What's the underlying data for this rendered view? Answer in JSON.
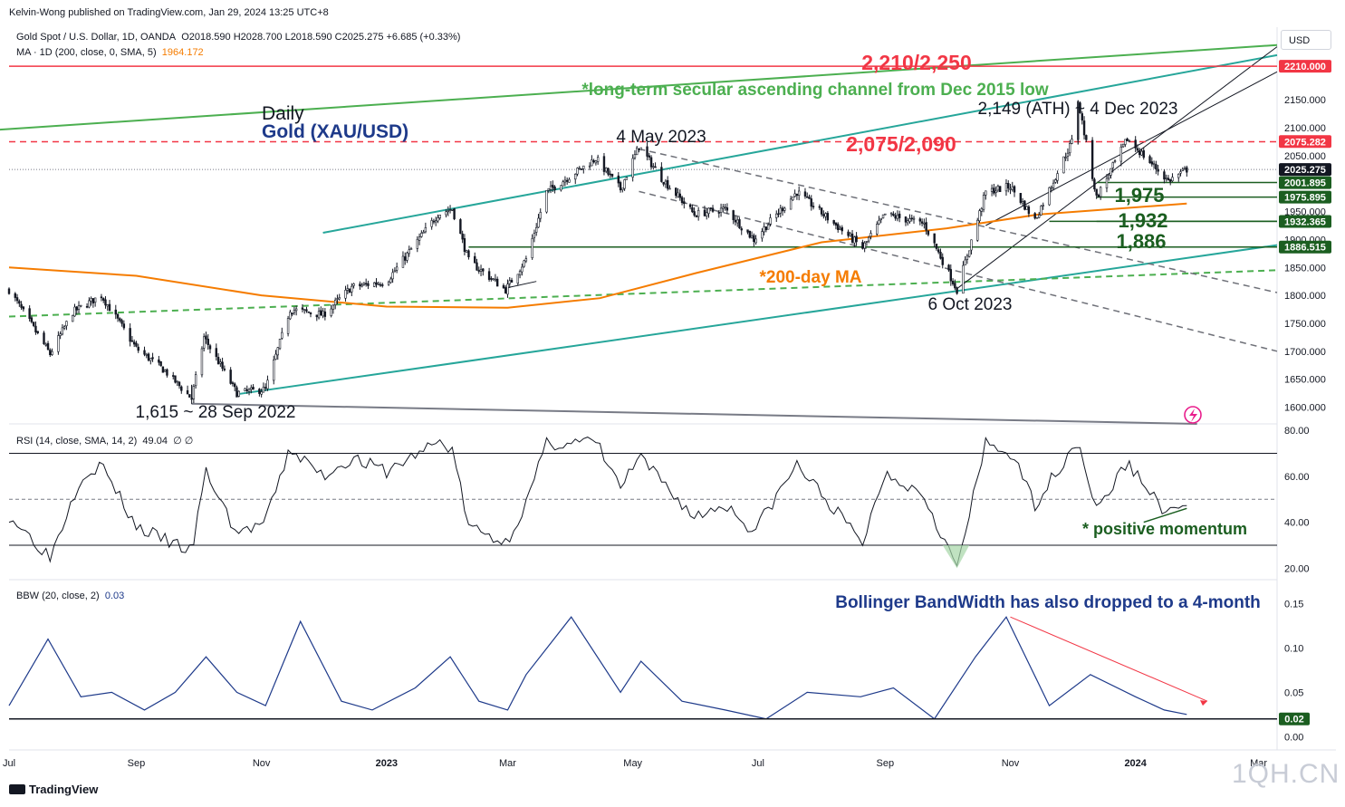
{
  "header": {
    "publisher": "Kelvin-Wong published on TradingView.com, Jan 29, 2024 13:25 UTC+8",
    "symbol": "Gold Spot / U.S. Dollar, 1D, OANDA",
    "ohlc": "O2018.590  H2028.700  L2018.590  C2025.275  +6.685 (+0.33%)",
    "ma_label": "MA · 1D (200, close, 0, SMA, 5)",
    "ma_value": "1964.172",
    "currency_button": "USD"
  },
  "colors": {
    "up": "#131722",
    "down": "#131722",
    "ma": "#f57c00",
    "channel": "#26a69a",
    "secular": "#4caf50",
    "resistance": "#f23645",
    "support": "#1b5e20",
    "rsi": "#131722",
    "bbw": "#1e3a8a",
    "note_blue": "#1e3a8a"
  },
  "chart_data": [
    {
      "type": "candlestick",
      "title": "Daily Gold (XAU/USD)",
      "timeframe": "Daily",
      "instrument": "Gold (XAU/USD)",
      "ylim": [
        1570,
        2280
      ],
      "xlim": [
        "2022-07-01",
        "2024-03-10"
      ],
      "x_tick_labels": [
        "Jul",
        "Sep",
        "Nov",
        "2023",
        "Mar",
        "May",
        "Jul",
        "Sep",
        "Nov",
        "2024",
        "Mar"
      ],
      "y_ticks": [
        1600,
        1650,
        1700,
        1750,
        1800,
        1850,
        1900,
        1950,
        2000,
        2050,
        2100,
        2150
      ],
      "y_tick_labels": [
        "1600.000",
        "1650.000",
        "1700.000",
        "1750.000",
        "1800.000",
        "1850.000",
        "1900.000",
        "1950.000",
        "2000.000",
        "2050.000",
        "2100.000",
        "2150.000"
      ],
      "price_path": [
        [
          "2022-07-01",
          1810
        ],
        [
          "2022-07-21",
          1695
        ],
        [
          "2022-08-01",
          1770
        ],
        [
          "2022-08-15",
          1800
        ],
        [
          "2022-09-01",
          1705
        ],
        [
          "2022-09-15",
          1665
        ],
        [
          "2022-09-28",
          1615
        ],
        [
          "2022-10-04",
          1725
        ],
        [
          "2022-10-20",
          1625
        ],
        [
          "2022-11-03",
          1632
        ],
        [
          "2022-11-15",
          1775
        ],
        [
          "2022-12-01",
          1765
        ],
        [
          "2022-12-15",
          1815
        ],
        [
          "2023-01-01",
          1825
        ],
        [
          "2023-01-26",
          1945
        ],
        [
          "2023-02-02",
          1955
        ],
        [
          "2023-02-10",
          1862
        ],
        [
          "2023-02-28",
          1810
        ],
        [
          "2023-03-10",
          1865
        ],
        [
          "2023-03-20",
          1985
        ],
        [
          "2023-04-13",
          2045
        ],
        [
          "2023-04-25",
          1990
        ],
        [
          "2023-05-04",
          2067
        ],
        [
          "2023-05-15",
          2010
        ],
        [
          "2023-05-31",
          1945
        ],
        [
          "2023-06-15",
          1955
        ],
        [
          "2023-06-29",
          1900
        ],
        [
          "2023-07-20",
          1985
        ],
        [
          "2023-08-21",
          1885
        ],
        [
          "2023-09-01",
          1945
        ],
        [
          "2023-09-20",
          1928
        ],
        [
          "2023-10-06",
          1810
        ],
        [
          "2023-10-20",
          1985
        ],
        [
          "2023-11-01",
          1995
        ],
        [
          "2023-11-13",
          1935
        ],
        [
          "2023-12-01",
          2075
        ],
        [
          "2023-12-04",
          2149
        ],
        [
          "2023-12-13",
          1975
        ],
        [
          "2023-12-28",
          2080
        ],
        [
          "2024-01-17",
          2005
        ],
        [
          "2024-01-26",
          2025.275
        ]
      ],
      "moving_average": {
        "name": "200-day MA",
        "path": [
          [
            "2022-07-01",
            1850
          ],
          [
            "2022-09-01",
            1835
          ],
          [
            "2022-11-01",
            1800
          ],
          [
            "2023-01-01",
            1780
          ],
          [
            "2023-03-01",
            1778
          ],
          [
            "2023-04-15",
            1795
          ],
          [
            "2023-06-01",
            1840
          ],
          [
            "2023-08-01",
            1895
          ],
          [
            "2023-10-01",
            1920
          ],
          [
            "2023-11-15",
            1945
          ],
          [
            "2024-01-26",
            1964.172
          ]
        ]
      },
      "price_labels": [
        {
          "value": 2210.0,
          "text": "2210.000",
          "color": "#f23645"
        },
        {
          "value": 2075.282,
          "text": "2075.282",
          "color": "#f23645"
        },
        {
          "value": 2025.275,
          "text": "2025.275",
          "color": "#131722"
        },
        {
          "value": 2001.895,
          "text": "2001.895",
          "color": "#1b5e20"
        },
        {
          "value": 1975.895,
          "text": "1975.895",
          "color": "#1b5e20"
        },
        {
          "value": 1932.365,
          "text": "1932.365",
          "color": "#1b5e20"
        },
        {
          "value": 1886.515,
          "text": "1886.515",
          "color": "#1b5e20"
        }
      ],
      "horizontal_levels": [
        {
          "value": 2210,
          "style": "solid",
          "color": "#f23645"
        },
        {
          "value": 2075,
          "style": "dashed",
          "color": "#f23645"
        },
        {
          "value": 2001.9,
          "style": "solid",
          "color": "#1b5e20"
        },
        {
          "value": 1975.9,
          "style": "solid",
          "color": "#1b5e20"
        },
        {
          "value": 1932.4,
          "style": "solid",
          "color": "#1b5e20"
        },
        {
          "value": 1886.5,
          "style": "solid",
          "color": "#1b5e20"
        }
      ],
      "annotations": {
        "resistance_1": "2,210/2,250",
        "secular_channel_note": "*long-term secular ascending channel from Dec 2015 low",
        "ath_label": "2,149 (ATH) ~ 4 Dec 2023",
        "may_label": "4 May 2023",
        "resistance_2": "2,075/2,090",
        "support_1": "1,975",
        "support_2": "1,932",
        "support_3": "1,886",
        "ma_note": "*200-day MA",
        "oct_low": "6 Oct 2023",
        "sep_low": "1,615 ~ 28 Sep 2022",
        "timeframe_label": "Daily",
        "instrument_label": "Gold (XAU/USD)"
      }
    },
    {
      "type": "line",
      "title": "RSI (14, close, SMA, 14, 2)",
      "legend_text": "RSI (14, close, SMA, 14, 2)",
      "value": "49.04",
      "flags": "∅ ∅",
      "ylim": [
        15,
        82
      ],
      "y_ticks": [
        20,
        40,
        60,
        80
      ],
      "y_tick_labels": [
        "20.00",
        "40.00",
        "60.00",
        "80.00"
      ],
      "bands": [
        30,
        50,
        70
      ],
      "path": [
        [
          "2022-07-01",
          43
        ],
        [
          "2022-07-21",
          25
        ],
        [
          "2022-08-05",
          60
        ],
        [
          "2022-08-15",
          65
        ],
        [
          "2022-09-01",
          38
        ],
        [
          "2022-09-28",
          27
        ],
        [
          "2022-10-05",
          62
        ],
        [
          "2022-10-20",
          35
        ],
        [
          "2022-11-03",
          40
        ],
        [
          "2022-11-15",
          72
        ],
        [
          "2022-12-01",
          60
        ],
        [
          "2022-12-15",
          68
        ],
        [
          "2023-01-01",
          62
        ],
        [
          "2023-01-26",
          75
        ],
        [
          "2023-02-02",
          72
        ],
        [
          "2023-02-10",
          38
        ],
        [
          "2023-02-28",
          31
        ],
        [
          "2023-03-10",
          48
        ],
        [
          "2023-03-20",
          74
        ],
        [
          "2023-04-13",
          75
        ],
        [
          "2023-04-25",
          55
        ],
        [
          "2023-05-04",
          68
        ],
        [
          "2023-05-15",
          58
        ],
        [
          "2023-05-31",
          42
        ],
        [
          "2023-06-15",
          48
        ],
        [
          "2023-06-29",
          36
        ],
        [
          "2023-07-20",
          65
        ],
        [
          "2023-08-21",
          31
        ],
        [
          "2023-09-01",
          62
        ],
        [
          "2023-09-20",
          52
        ],
        [
          "2023-10-06",
          20
        ],
        [
          "2023-10-20",
          74
        ],
        [
          "2023-11-01",
          70
        ],
        [
          "2023-11-13",
          48
        ],
        [
          "2023-12-01",
          72
        ],
        [
          "2023-12-04",
          76
        ],
        [
          "2023-12-13",
          45
        ],
        [
          "2023-12-28",
          66
        ],
        [
          "2024-01-17",
          43
        ],
        [
          "2024-01-26",
          49.04
        ]
      ],
      "annotation": "* positive momentum"
    },
    {
      "type": "line",
      "title": "BBW (20, close, 2)",
      "legend_text": "BBW (20, close, 2)",
      "value": "0.03",
      "ylim": [
        -0.015,
        0.175
      ],
      "y_ticks": [
        0.0,
        0.05,
        0.1,
        0.15
      ],
      "y_tick_labels": [
        "0.00",
        "0.05",
        "0.10",
        "0.15"
      ],
      "level": 0.02,
      "level_label": "0.02",
      "path": [
        [
          "2022-07-01",
          0.035
        ],
        [
          "2022-07-20",
          0.11
        ],
        [
          "2022-08-05",
          0.045
        ],
        [
          "2022-08-20",
          0.05
        ],
        [
          "2022-09-05",
          0.03
        ],
        [
          "2022-09-20",
          0.05
        ],
        [
          "2022-10-05",
          0.09
        ],
        [
          "2022-10-20",
          0.05
        ],
        [
          "2022-11-03",
          0.035
        ],
        [
          "2022-11-20",
          0.13
        ],
        [
          "2022-12-10",
          0.04
        ],
        [
          "2022-12-25",
          0.03
        ],
        [
          "2023-01-15",
          0.055
        ],
        [
          "2023-02-01",
          0.09
        ],
        [
          "2023-02-15",
          0.04
        ],
        [
          "2023-03-01",
          0.03
        ],
        [
          "2023-03-10",
          0.07
        ],
        [
          "2023-04-01",
          0.135
        ],
        [
          "2023-04-25",
          0.05
        ],
        [
          "2023-05-05",
          0.085
        ],
        [
          "2023-05-25",
          0.04
        ],
        [
          "2023-06-15",
          0.03
        ],
        [
          "2023-07-05",
          0.02
        ],
        [
          "2023-07-25",
          0.05
        ],
        [
          "2023-08-20",
          0.045
        ],
        [
          "2023-09-05",
          0.055
        ],
        [
          "2023-09-25",
          0.02
        ],
        [
          "2023-10-15",
          0.09
        ],
        [
          "2023-10-30",
          0.135
        ],
        [
          "2023-11-20",
          0.035
        ],
        [
          "2023-12-10",
          0.07
        ],
        [
          "2024-01-01",
          0.045
        ],
        [
          "2024-01-15",
          0.03
        ],
        [
          "2024-01-26",
          0.025
        ]
      ],
      "annotation": "Bollinger BandWidth has also dropped to a 4-month"
    }
  ],
  "footer": {
    "logo_text": "TradingView",
    "watermark": "1QH.CN"
  }
}
